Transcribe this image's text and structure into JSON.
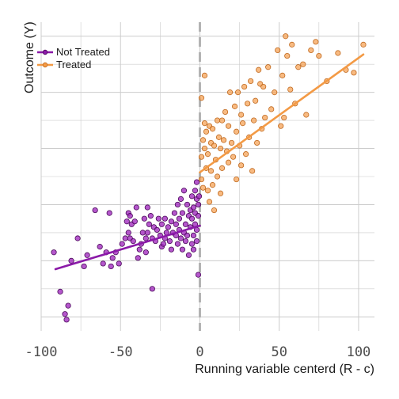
{
  "chart_data": {
    "type": "scatter",
    "xlabel": "Running variable centerd (R - c)",
    "ylabel": "Outcome (Y)",
    "xlim": [
      -100,
      110
    ],
    "ylim": [
      -0.05,
      1.05
    ],
    "x_ticks": [
      -100,
      -50,
      0,
      50,
      100
    ],
    "x_tick_labels": [
      "-100",
      "-50",
      "0",
      "50",
      "100"
    ],
    "y_ticks_unlabeled": true,
    "grid": true,
    "cutoff": 0,
    "legend_position": "top-left",
    "colors": {
      "not_treated": "#8B1AA8",
      "treated": "#F39A45",
      "cutoff_line": "#b3b3b3",
      "grid": "#cccccc"
    },
    "series": [
      {
        "name": "Not Treated",
        "color": "#8B1AA8",
        "fit": {
          "x": [
            -91,
            0
          ],
          "y": [
            0.17,
            0.325
          ]
        },
        "points": [
          [
            -92,
            0.23
          ],
          [
            -88,
            0.09
          ],
          [
            -85,
            0.01
          ],
          [
            -84,
            -0.01
          ],
          [
            -83,
            0.04
          ],
          [
            -81,
            0.2
          ],
          [
            -77,
            0.28
          ],
          [
            -73,
            0.18
          ],
          [
            -71,
            0.22
          ],
          [
            -66,
            0.38
          ],
          [
            -63,
            0.25
          ],
          [
            -61,
            0.19
          ],
          [
            -59,
            0.23
          ],
          [
            -57,
            0.37
          ],
          [
            -56,
            0.18
          ],
          [
            -55,
            0.21
          ],
          [
            -53,
            0.23
          ],
          [
            -51,
            0.19
          ],
          [
            -49,
            0.26
          ],
          [
            -47,
            0.28
          ],
          [
            -46,
            0.34
          ],
          [
            -45,
            0.37
          ],
          [
            -45,
            0.3
          ],
          [
            -44,
            0.36
          ],
          [
            -44,
            0.28
          ],
          [
            -43,
            0.33
          ],
          [
            -42,
            0.27
          ],
          [
            -41,
            0.34
          ],
          [
            -40,
            0.39
          ],
          [
            -39,
            0.21
          ],
          [
            -38,
            0.24
          ],
          [
            -37,
            0.26
          ],
          [
            -36,
            0.3
          ],
          [
            -35,
            0.35
          ],
          [
            -34,
            0.28
          ],
          [
            -34,
            0.23
          ],
          [
            -33,
            0.39
          ],
          [
            -33,
            0.3
          ],
          [
            -32,
            0.33
          ],
          [
            -31,
            0.36
          ],
          [
            -30,
            0.28
          ],
          [
            -30,
            0.1
          ],
          [
            -29,
            0.32
          ],
          [
            -28,
            0.27
          ],
          [
            -27,
            0.31
          ],
          [
            -26,
            0.35
          ],
          [
            -25,
            0.29
          ],
          [
            -24,
            0.25
          ],
          [
            -24,
            0.33
          ],
          [
            -23,
            0.26
          ],
          [
            -22,
            0.28
          ],
          [
            -22,
            0.35
          ],
          [
            -21,
            0.3
          ],
          [
            -20,
            0.32
          ],
          [
            -19,
            0.27
          ],
          [
            -18,
            0.34
          ],
          [
            -18,
            0.24
          ],
          [
            -17,
            0.3
          ],
          [
            -16,
            0.37
          ],
          [
            -15,
            0.29
          ],
          [
            -15,
            0.33
          ],
          [
            -14,
            0.4
          ],
          [
            -14,
            0.26
          ],
          [
            -13,
            0.35
          ],
          [
            -13,
            0.31
          ],
          [
            -12,
            0.28
          ],
          [
            -12,
            0.42
          ],
          [
            -11,
            0.37
          ],
          [
            -11,
            0.24
          ],
          [
            -10,
            0.3
          ],
          [
            -10,
            0.45
          ],
          [
            -9,
            0.33
          ],
          [
            -9,
            0.27
          ],
          [
            -8,
            0.4
          ],
          [
            -8,
            0.29
          ],
          [
            -7,
            0.36
          ],
          [
            -7,
            0.22
          ],
          [
            -6,
            0.32
          ],
          [
            -6,
            0.38
          ],
          [
            -5,
            0.26
          ],
          [
            -5,
            0.43
          ],
          [
            -5,
            0.35
          ],
          [
            -4,
            0.29
          ],
          [
            -4,
            0.39
          ],
          [
            -4,
            0.24
          ],
          [
            -3,
            0.33
          ],
          [
            -3,
            0.45
          ],
          [
            -3,
            0.37
          ],
          [
            -2,
            0.31
          ],
          [
            -2,
            0.42
          ],
          [
            -2,
            0.27
          ],
          [
            -2,
            0.48
          ],
          [
            -1,
            0.36
          ],
          [
            -1,
            0.4
          ],
          [
            -1,
            0.15
          ],
          [
            -0.5,
            0.43
          ]
        ]
      },
      {
        "name": "Treated",
        "color": "#F39A45",
        "fit": {
          "x": [
            0,
            103
          ],
          "y": [
            0.515,
            0.935
          ]
        },
        "points": [
          [
            1,
            0.49
          ],
          [
            1,
            0.57
          ],
          [
            1,
            0.78
          ],
          [
            2,
            0.46
          ],
          [
            2,
            0.63
          ],
          [
            3,
            0.6
          ],
          [
            3,
            0.86
          ],
          [
            3,
            0.69
          ],
          [
            4,
            0.53
          ],
          [
            4,
            0.66
          ],
          [
            5,
            0.45
          ],
          [
            5,
            0.58
          ],
          [
            6,
            0.68
          ],
          [
            6,
            0.41
          ],
          [
            7,
            0.62
          ],
          [
            7,
            0.52
          ],
          [
            8,
            0.67
          ],
          [
            8,
            0.47
          ],
          [
            9,
            0.61
          ],
          [
            9,
            0.38
          ],
          [
            10,
            0.56
          ],
          [
            11,
            0.7
          ],
          [
            11,
            0.5
          ],
          [
            12,
            0.64
          ],
          [
            13,
            0.6
          ],
          [
            13,
            0.44
          ],
          [
            14,
            0.53
          ],
          [
            14,
            0.7
          ],
          [
            15,
            0.63
          ],
          [
            16,
            0.73
          ],
          [
            17,
            0.59
          ],
          [
            18,
            0.68
          ],
          [
            18,
            0.55
          ],
          [
            19,
            0.8
          ],
          [
            20,
            0.62
          ],
          [
            21,
            0.57
          ],
          [
            22,
            0.75
          ],
          [
            23,
            0.66
          ],
          [
            23,
            0.49
          ],
          [
            24,
            0.8
          ],
          [
            25,
            0.61
          ],
          [
            26,
            0.54
          ],
          [
            26,
            0.72
          ],
          [
            27,
            0.69
          ],
          [
            28,
            0.82
          ],
          [
            29,
            0.58
          ],
          [
            30,
            0.76
          ],
          [
            31,
            0.64
          ],
          [
            32,
            0.84
          ],
          [
            33,
            0.52
          ],
          [
            34,
            0.7
          ],
          [
            35,
            0.77
          ],
          [
            36,
            0.62
          ],
          [
            37,
            0.88
          ],
          [
            38,
            0.83
          ],
          [
            39,
            0.67
          ],
          [
            40,
            0.82
          ],
          [
            41,
            0.71
          ],
          [
            43,
            0.89
          ],
          [
            45,
            0.74
          ],
          [
            47,
            0.8
          ],
          [
            49,
            0.95
          ],
          [
            51,
            0.68
          ],
          [
            52,
            0.86
          ],
          [
            53,
            0.71
          ],
          [
            54,
            1.0
          ],
          [
            55,
            0.93
          ],
          [
            57,
            0.81
          ],
          [
            58,
            0.97
          ],
          [
            60,
            0.76
          ],
          [
            62,
            0.89
          ],
          [
            65,
            0.9
          ],
          [
            67,
            0.72
          ],
          [
            70,
            0.95
          ],
          [
            73,
            0.98
          ],
          [
            75,
            0.93
          ],
          [
            80,
            0.84
          ],
          [
            87,
            0.94
          ],
          [
            92,
            0.88
          ],
          [
            97,
            0.87
          ],
          [
            103,
            0.97
          ]
        ]
      }
    ]
  }
}
